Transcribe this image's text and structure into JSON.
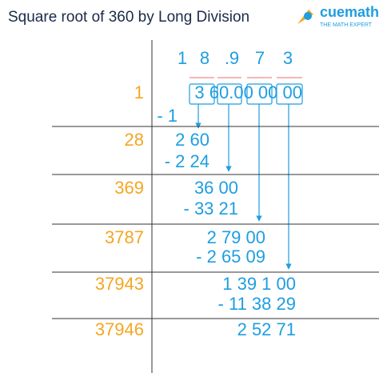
{
  "title": "Square root of 360 by Long Division",
  "logo": {
    "brand": "cuemath",
    "tagline": "THE MATH EXPERT"
  },
  "quotient": [
    "1",
    "8",
    ".9",
    "7",
    "3"
  ],
  "steps": [
    {
      "divisor": "1",
      "dividend": "3 60.00 00 00",
      "subtract": "- 1"
    },
    {
      "divisor": "28",
      "dividend": "2 60",
      "subtract": "- 2 24"
    },
    {
      "divisor": "369",
      "dividend": "36 00",
      "subtract": "- 33 21"
    },
    {
      "divisor": "3787",
      "dividend": "2 79 00",
      "subtract": "- 2 65 09"
    },
    {
      "divisor": "37943",
      "dividend": "1 39 1 00",
      "subtract": "- 11 38 29"
    },
    {
      "divisor": "37946",
      "dividend": "2 52 71"
    }
  ]
}
